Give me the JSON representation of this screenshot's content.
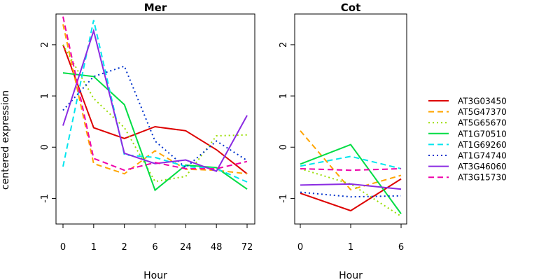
{
  "chart_data": {
    "type": "line",
    "ylabel": "centered expression",
    "ylim": [
      -1.5,
      2.6
    ],
    "yticks": [
      -1,
      0,
      1,
      2
    ],
    "legend_position": "right",
    "series_styles": [
      {
        "name": "AT3G03450",
        "color": "#dd0000",
        "dash": "solid"
      },
      {
        "name": "AT5G47370",
        "color": "#ffa500",
        "dash": "dashed"
      },
      {
        "name": "AT5G65670",
        "color": "#99dd00",
        "dash": "dotted"
      },
      {
        "name": "AT1G70510",
        "color": "#00dd44",
        "dash": "solid"
      },
      {
        "name": "AT1G69260",
        "color": "#00e5ee",
        "dash": "dashed"
      },
      {
        "name": "AT1G74740",
        "color": "#0033cc",
        "dash": "dotted"
      },
      {
        "name": "AT3G46060",
        "color": "#8a2be2",
        "dash": "solid"
      },
      {
        "name": "AT3G15730",
        "color": "#ee00aa",
        "dash": "dashed"
      }
    ],
    "panels": [
      {
        "title": "Mer",
        "xlabel": "Hour",
        "categories": [
          "0",
          "1",
          "2",
          "6",
          "24",
          "48",
          "72"
        ],
        "series": [
          {
            "name": "AT3G03450",
            "values": [
              2.0,
              0.38,
              0.17,
              0.4,
              0.32,
              -0.05,
              -0.52
            ]
          },
          {
            "name": "AT5G47370",
            "values": [
              2.4,
              -0.32,
              -0.52,
              -0.07,
              -0.43,
              -0.45,
              -0.52
            ]
          },
          {
            "name": "AT5G65670",
            "values": [
              2.0,
              0.95,
              0.38,
              -0.67,
              -0.57,
              0.22,
              0.24
            ]
          },
          {
            "name": "AT1G70510",
            "values": [
              1.45,
              1.38,
              0.83,
              -0.84,
              -0.35,
              -0.4,
              -0.82
            ]
          },
          {
            "name": "AT1G69260",
            "values": [
              -0.38,
              2.48,
              -0.15,
              -0.2,
              -0.38,
              -0.42,
              -0.68
            ]
          },
          {
            "name": "AT1G74740",
            "values": [
              0.72,
              1.38,
              1.58,
              0.12,
              -0.4,
              0.12,
              -0.26
            ]
          },
          {
            "name": "AT3G46060",
            "values": [
              0.42,
              2.27,
              -0.12,
              -0.32,
              -0.25,
              -0.47,
              0.62
            ]
          },
          {
            "name": "AT3G15730",
            "values": [
              2.55,
              -0.22,
              -0.45,
              -0.3,
              -0.42,
              -0.42,
              -0.28
            ]
          }
        ]
      },
      {
        "title": "Cot",
        "xlabel": "Hour",
        "categories": [
          "0",
          "1",
          "6"
        ],
        "series": [
          {
            "name": "AT3G03450",
            "values": [
              -0.9,
              -1.24,
              -0.62
            ]
          },
          {
            "name": "AT5G47370",
            "values": [
              0.32,
              -0.83,
              -0.55
            ]
          },
          {
            "name": "AT5G65670",
            "values": [
              -0.42,
              -0.72,
              -1.35
            ]
          },
          {
            "name": "AT1G70510",
            "values": [
              -0.33,
              0.05,
              -1.3
            ]
          },
          {
            "name": "AT1G69260",
            "values": [
              -0.37,
              -0.18,
              -0.42
            ]
          },
          {
            "name": "AT1G74740",
            "values": [
              -0.88,
              -0.97,
              -0.95
            ]
          },
          {
            "name": "AT3G46060",
            "values": [
              -0.74,
              -0.72,
              -0.82
            ]
          },
          {
            "name": "AT3G15730",
            "values": [
              -0.42,
              -0.45,
              -0.42
            ]
          }
        ]
      }
    ]
  }
}
